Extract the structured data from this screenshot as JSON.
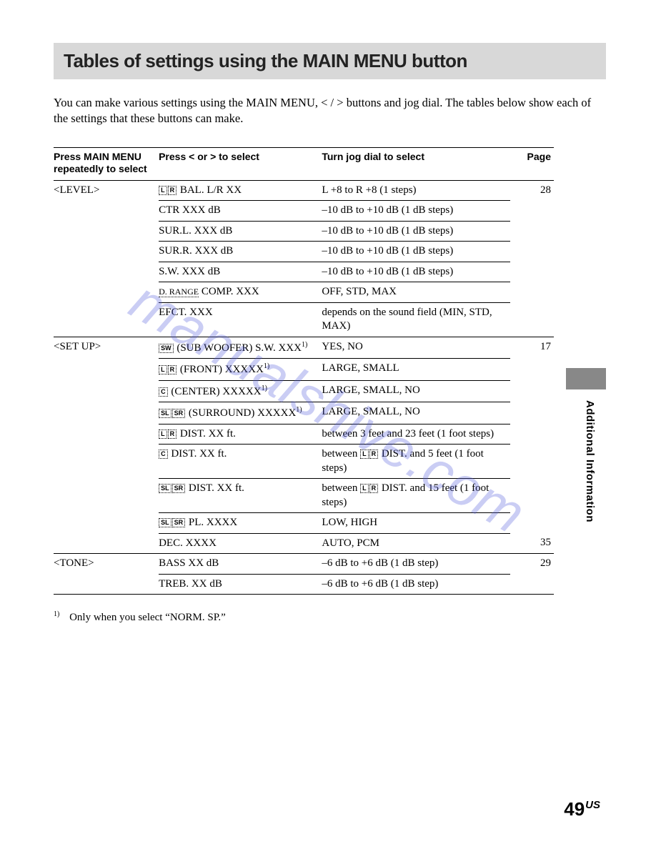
{
  "title": "Tables of settings using the MAIN MENU button",
  "intro": "You can make various settings using the MAIN MENU, < / > buttons and jog dial. The tables below show each of the settings that these buttons can make.",
  "columns": {
    "col1_line1": "Press MAIN MENU",
    "col1_line2": "repeatedly to select",
    "col2": "Press < or > to select",
    "col3": "Turn jog dial to select",
    "col4": "Page"
  },
  "groups": [
    {
      "menu": "<LEVEL>",
      "rows": [
        {
          "press_icons": [
            "L",
            "R"
          ],
          "press": " BAL. L/R XX",
          "jog": "L +8 to R +8 (1 steps)",
          "page": "28"
        },
        {
          "press": "CTR XXX dB",
          "jog": "–10 dB to +10 dB (1 dB steps)",
          "page": ""
        },
        {
          "press": "SUR.L. XXX dB",
          "jog": "–10 dB to +10 dB (1 dB steps)",
          "page": ""
        },
        {
          "press": "SUR.R. XXX dB",
          "jog": "–10 dB to +10 dB (1 dB steps)",
          "page": ""
        },
        {
          "press": "S.W. XXX dB",
          "jog": "–10 dB to +10 dB (1 dB steps)",
          "page": ""
        },
        {
          "press_prefix_drange": "D. RANGE",
          "press": " COMP. XXX",
          "jog": "OFF, STD, MAX",
          "page": ""
        },
        {
          "press": "EFCT. XXX",
          "jog": "depends on the sound field (MIN, STD, MAX)",
          "page": ""
        }
      ]
    },
    {
      "menu": "<SET UP>",
      "rows": [
        {
          "press_icons": [
            "SW"
          ],
          "press": " (SUB WOOFER) S.W. XXX",
          "sup": "1)",
          "jog": "YES, NO",
          "page": "17"
        },
        {
          "press_icons": [
            "L",
            "R"
          ],
          "press": " (FRONT) XXXXX",
          "sup": "1)",
          "jog": "LARGE, SMALL",
          "page": ""
        },
        {
          "press_icons": [
            "C"
          ],
          "press": " (CENTER) XXXXX",
          "sup": "1)",
          "jog": "LARGE, SMALL, NO",
          "page": ""
        },
        {
          "press_icons": [
            "SL",
            "SR"
          ],
          "press": " (SURROUND) XXXXX",
          "sup": "1)",
          "jog": "LARGE, SMALL, NO",
          "page": ""
        },
        {
          "press_icons": [
            "L",
            "R"
          ],
          "press": " DIST. XX ft.",
          "jog": "between 3 feet and 23 feet (1 foot steps)",
          "page": ""
        },
        {
          "press_icons": [
            "C"
          ],
          "press": " DIST. XX ft.",
          "jog_pre": "between ",
          "jog_icons": [
            "L",
            "R"
          ],
          "jog": " DIST. and 5 feet (1 foot steps)",
          "page": ""
        },
        {
          "press_icons": [
            "SL",
            "SR"
          ],
          "press": " DIST. XX ft.",
          "jog_pre": "between ",
          "jog_icons": [
            "L",
            "R"
          ],
          "jog": " DIST. and 15 feet (1 foot steps)",
          "page": ""
        },
        {
          "press_icons": [
            "SL",
            "SR"
          ],
          "press": " PL. XXXX",
          "jog": "LOW, HIGH",
          "page": ""
        },
        {
          "press": "DEC. XXXX",
          "jog": "AUTO, PCM",
          "page": "35"
        }
      ]
    },
    {
      "menu": "<TONE>",
      "rows": [
        {
          "press": "BASS XX dB",
          "jog": "–6 dB to +6 dB (1 dB step)",
          "page": "29"
        },
        {
          "press": "TREB. XX dB",
          "jog": "–6 dB to +6 dB (1 dB step)",
          "page": ""
        }
      ]
    }
  ],
  "footnote_marker": "1)",
  "footnote_text": "Only when you select “NORM. SP.”",
  "side_label": "Additional Information",
  "watermark": "manualshive.com",
  "page_number": "49",
  "page_suffix": "US",
  "colors": {
    "banner_bg": "#d8d8d8",
    "text": "#000000",
    "watermark": "rgba(80,90,220,0.30)",
    "side_tab": "#888888"
  },
  "fonts": {
    "body": "Times New Roman",
    "headings": "Arial"
  }
}
